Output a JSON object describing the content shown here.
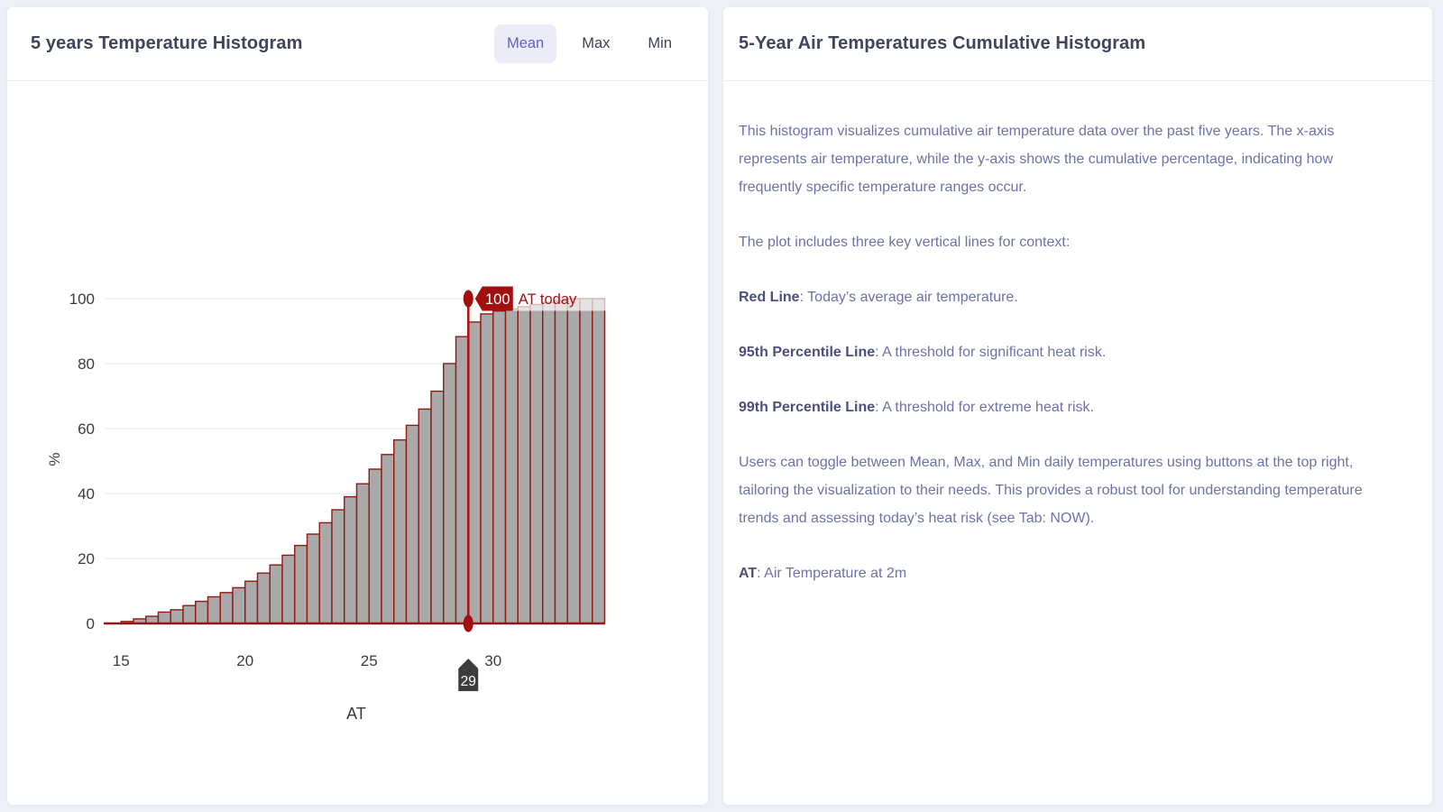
{
  "left_panel": {
    "title": "5 years Temperature Histogram",
    "toggles": [
      {
        "label": "Mean",
        "selected": true
      },
      {
        "label": "Max",
        "selected": false
      },
      {
        "label": "Min",
        "selected": false
      }
    ]
  },
  "chart_data": {
    "type": "bar",
    "subtype": "cumulative-histogram",
    "title": "",
    "xlabel": "AT",
    "ylabel": "%",
    "xlim": [
      14.3,
      34.6
    ],
    "ylim": [
      0,
      100
    ],
    "grid": "horizontal",
    "x_ticks": [
      15,
      20,
      25,
      30
    ],
    "y_ticks": [
      0,
      20,
      40,
      60,
      80,
      100
    ],
    "bin_start": 15.0,
    "bin_width": 0.5,
    "cumulative_percent": [
      0.6,
      1.4,
      2.2,
      3.5,
      4.2,
      5.5,
      6.8,
      8.2,
      9.5,
      11,
      13,
      15.5,
      18,
      21,
      24,
      27.5,
      31,
      35,
      39,
      43,
      47.5,
      52,
      56.5,
      61,
      66,
      71.5,
      80,
      88.3,
      92.8,
      95.3,
      96.2,
      96.8,
      97.5,
      98.2,
      98.8,
      99.4,
      100,
      100,
      100
    ],
    "bar_fill": "#a9a9a9",
    "bar_stroke": "#8e1a12",
    "marker": {
      "x": 29,
      "x_badge": "29",
      "value_label": "100",
      "annotation": "AT today",
      "line_color": "#b31312",
      "badge_color": "#3d3d3d"
    }
  },
  "right_panel": {
    "title": "5-Year Air Temperatures Cumulative Histogram",
    "paragraphs": [
      {
        "lead": "",
        "text": "This histogram visualizes cumulative air temperature data over the past five years. The x-axis represents air temperature, while the y-axis shows the cumulative percentage, indicating how frequently specific temperature ranges occur."
      },
      {
        "lead": "",
        "text": "The plot includes three key vertical lines for context:"
      },
      {
        "lead": "Red Line",
        "text": ": Today’s average air temperature."
      },
      {
        "lead": "95th Percentile Line",
        "text": ": A threshold for significant heat risk."
      },
      {
        "lead": "99th Percentile Line",
        "text": ": A threshold for extreme heat risk."
      },
      {
        "lead": "",
        "text": "Users can toggle between Mean, Max, and Min daily temperatures using buttons at the top right, tailoring the visualization to their needs. This provides a robust tool for understanding temperature trends and assessing today’s heat risk (see Tab: NOW)."
      },
      {
        "lead": "AT",
        "text": ": Air Temperature at 2m"
      }
    ]
  },
  "colors": {
    "page_bg": "#eef0f7",
    "card_bg": "#ffffff",
    "title_text": "#40455e",
    "body_text": "#6d72a8",
    "bold_text": "#4b5078",
    "active_toggle_bg": "#ececf9",
    "active_toggle_text": "#5f5fc8",
    "axis_text": "#3c3c3c",
    "gridline": "#ececec"
  }
}
